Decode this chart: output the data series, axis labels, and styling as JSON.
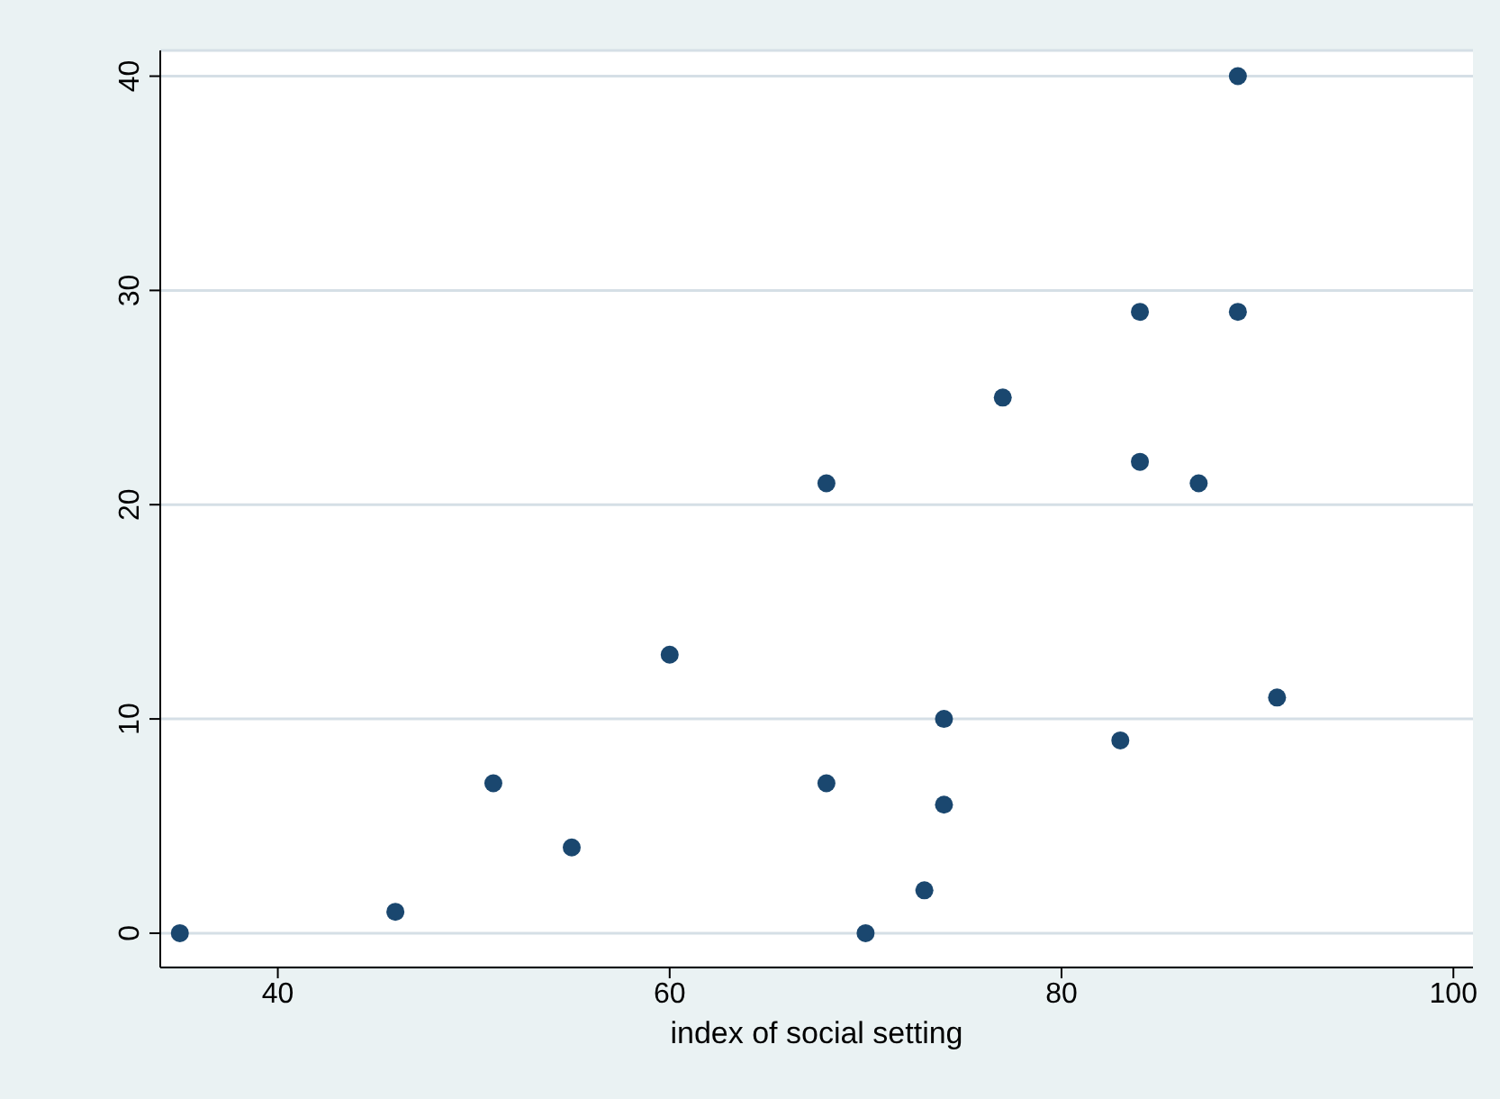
{
  "chart_data": {
    "type": "scatter",
    "xlabel": "index of social setting",
    "x": [
      35,
      46,
      51,
      55,
      60,
      68,
      68,
      70,
      73,
      74,
      74,
      77,
      83,
      84,
      84,
      87,
      89,
      89,
      91
    ],
    "values": [
      0,
      1,
      7,
      4,
      13,
      21,
      7,
      0,
      2,
      10,
      6,
      25,
      9,
      29,
      22,
      21,
      29,
      40,
      11
    ],
    "color": "#1a476f",
    "marker": "circle",
    "grid": "y",
    "xlim": [
      34,
      101
    ],
    "xticks": [
      40,
      60,
      80,
      100
    ],
    "ylim": [
      -1.6,
      41.2
    ],
    "yticks": [
      0,
      10,
      20,
      30,
      40
    ]
  }
}
